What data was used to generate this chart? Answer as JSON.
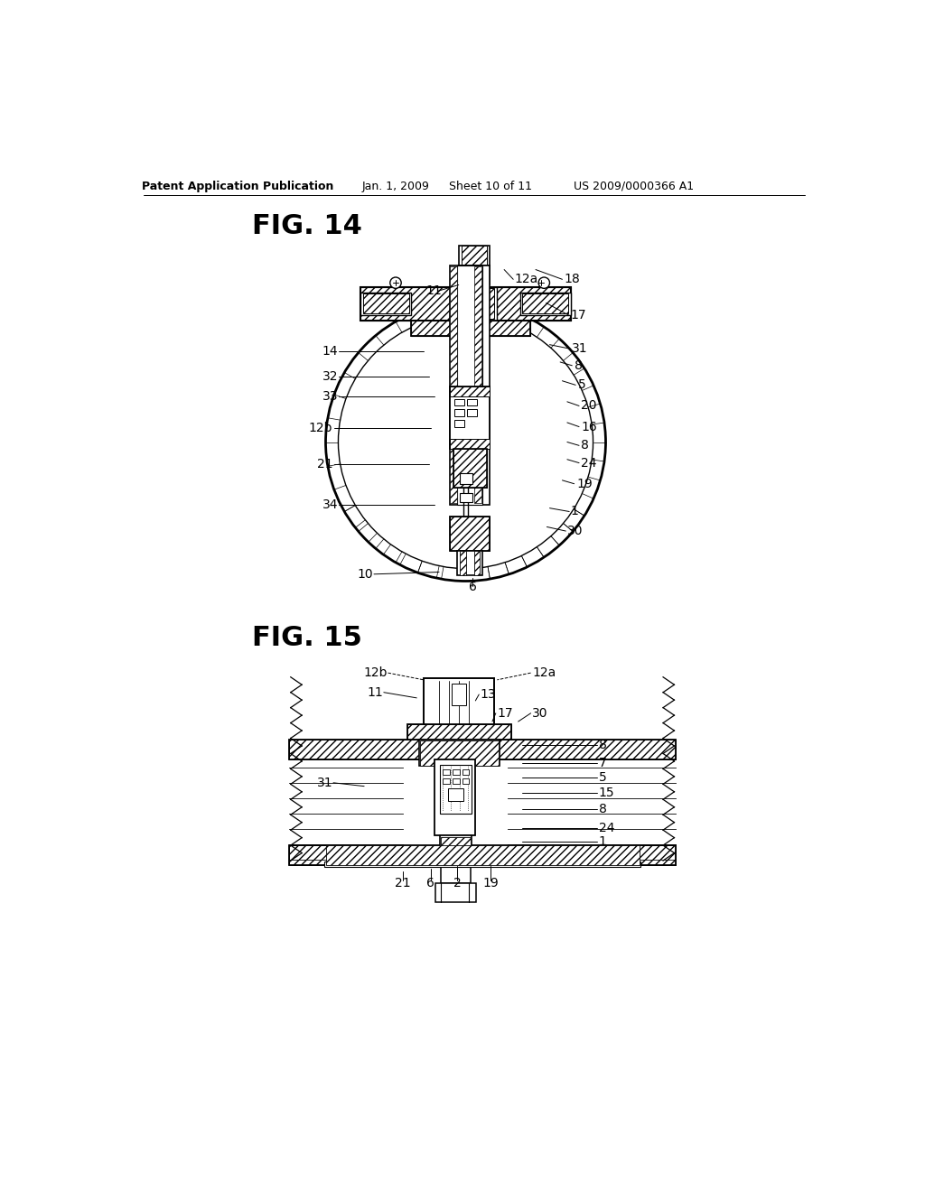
{
  "bg_color": "#ffffff",
  "header_text": "Patent Application Publication",
  "header_date": "Jan. 1, 2009",
  "header_sheet": "Sheet 10 of 11",
  "header_patent": "US 2009/0000366 A1",
  "fig14_label": "FIG. 14",
  "fig15_label": "FIG. 15"
}
